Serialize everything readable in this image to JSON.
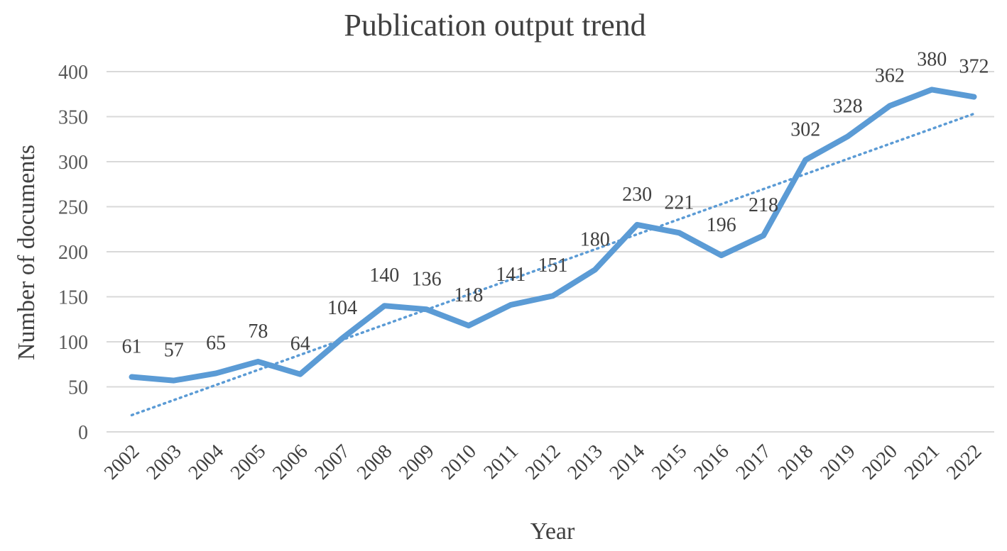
{
  "chart_data": {
    "type": "line",
    "title": "Publication output trend",
    "xlabel": "Year",
    "ylabel": "Number of documents",
    "ylim": [
      0,
      400
    ],
    "yticks": [
      0,
      50,
      100,
      150,
      200,
      250,
      300,
      350,
      400
    ],
    "grid": true,
    "categories": [
      "2002",
      "2003",
      "2004",
      "2005",
      "2006",
      "2007",
      "2008",
      "2009",
      "2010",
      "2011",
      "2012",
      "2013",
      "2014",
      "2015",
      "2016",
      "2017",
      "2018",
      "2019",
      "2020",
      "2021",
      "2022"
    ],
    "series": [
      {
        "values": [
          61,
          57,
          65,
          78,
          64,
          104,
          140,
          136,
          118,
          141,
          151,
          180,
          230,
          221,
          196,
          218,
          302,
          328,
          362,
          380,
          372
        ],
        "color": "#5b9bd5",
        "style": "solid",
        "data_labels": true
      }
    ],
    "trendline": {
      "type": "linear",
      "color": "#5b9bd5",
      "style": "dotted"
    }
  }
}
